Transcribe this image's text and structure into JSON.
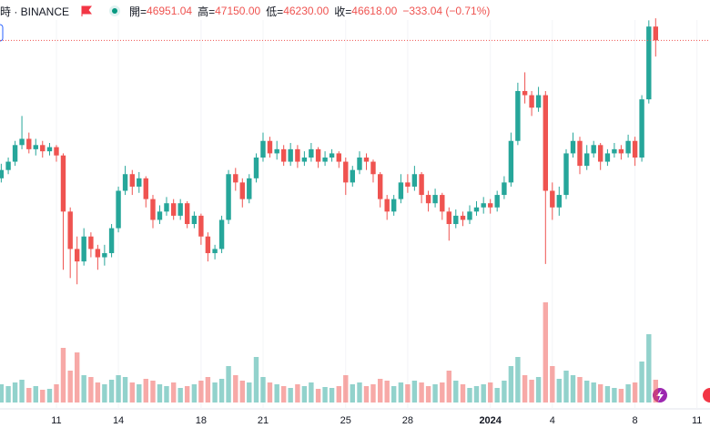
{
  "header": {
    "symbol": "時 · BINANCE",
    "open_label": "開=",
    "open": "46951.04",
    "high_label": "高=",
    "high": "47150.00",
    "low_label": "低=",
    "low": "46230.00",
    "close_label": "收=",
    "close": "46618.00",
    "change": "−333.04 (−0.71%)"
  },
  "chart_data": {
    "type": "candlestick",
    "x": [
      8.33,
      8.67,
      9,
      9.33,
      9.67,
      10,
      10.33,
      10.67,
      11,
      11.33,
      11.67,
      12,
      12.33,
      12.67,
      13,
      13.33,
      13.67,
      14,
      14.33,
      14.67,
      15,
      15.33,
      15.67,
      16,
      16.33,
      16.67,
      17,
      17.33,
      17.67,
      18,
      18.33,
      18.67,
      19,
      19.33,
      19.67,
      20,
      20.33,
      20.67,
      21,
      21.33,
      21.67,
      22,
      22.33,
      22.67,
      23,
      23.33,
      23.67,
      24,
      24.33,
      24.67,
      25,
      25.33,
      25.67,
      26,
      26.33,
      26.67,
      27,
      27.33,
      27.67,
      28,
      28.33,
      28.67,
      29,
      29.33,
      29.67,
      30,
      30.33,
      30.67,
      31,
      31.33,
      31.67,
      32,
      32.33,
      32.67,
      33,
      33.33,
      33.67,
      34,
      34.33,
      34.67,
      35,
      35.33,
      35.67,
      36,
      36.33,
      36.67,
      37,
      37.33,
      37.67,
      38,
      38.33,
      38.67,
      39,
      39.33,
      39.67,
      40
    ],
    "open": [
      43300,
      43500,
      43700,
      44100,
      44250,
      44000,
      44100,
      43950,
      44050,
      43850,
      42500,
      41600,
      41300,
      41900,
      41600,
      41400,
      41500,
      42100,
      43000,
      43400,
      43100,
      43300,
      42800,
      42300,
      42500,
      42700,
      42400,
      42700,
      42200,
      42400,
      41900,
      41500,
      41600,
      42300,
      43400,
      43200,
      42800,
      43300,
      43800,
      44200,
      43900,
      44000,
      43700,
      44000,
      43700,
      43800,
      44000,
      43700,
      43800,
      43900,
      43700,
      43200,
      43500,
      43800,
      43700,
      43400,
      42800,
      42500,
      42800,
      43200,
      43100,
      43400,
      42900,
      42700,
      42900,
      42500,
      42200,
      42400,
      42300,
      42500,
      42600,
      42700,
      42600,
      42900,
      43200,
      44200,
      45400,
      45300,
      45000,
      45300,
      43000,
      42600,
      42900,
      43900,
      44200,
      43600,
      43900,
      44100,
      43700,
      43900,
      44000,
      43900,
      44200,
      43800,
      45200,
      46951.04
    ],
    "high": [
      43650,
      43800,
      44200,
      44800,
      44400,
      44250,
      44200,
      44150,
      44100,
      43900,
      42600,
      41900,
      42100,
      42000,
      41700,
      41700,
      42200,
      43100,
      43600,
      43500,
      43450,
      43350,
      42900,
      42650,
      42850,
      42800,
      42800,
      42750,
      42500,
      42450,
      42000,
      41700,
      42400,
      43500,
      43550,
      43300,
      43400,
      43900,
      44400,
      44300,
      44200,
      44100,
      44150,
      44100,
      43950,
      44150,
      44050,
      43950,
      44000,
      43950,
      43800,
      43600,
      43950,
      43900,
      43750,
      43450,
      42900,
      42900,
      43400,
      43400,
      43600,
      43450,
      43000,
      43050,
      42950,
      42600,
      42550,
      42500,
      42650,
      42750,
      42850,
      42800,
      43000,
      43350,
      44400,
      45600,
      45850,
      45400,
      45500,
      45400,
      43200,
      43100,
      44000,
      44400,
      44300,
      44100,
      44200,
      44150,
      44000,
      44150,
      44100,
      44350,
      44300,
      45300,
      47100,
      47150
    ],
    "low": [
      43200,
      43400,
      43600,
      44000,
      43900,
      43850,
      43800,
      43850,
      43700,
      41100,
      40900,
      40750,
      41200,
      41400,
      41100,
      41200,
      41400,
      42000,
      42900,
      42900,
      42950,
      42600,
      42100,
      42200,
      42400,
      42300,
      42300,
      42100,
      42100,
      41700,
      41300,
      41350,
      41500,
      42200,
      43000,
      42600,
      42700,
      43200,
      43700,
      43800,
      43750,
      43600,
      43600,
      43550,
      43600,
      43700,
      43550,
      43600,
      43700,
      43550,
      42900,
      43100,
      43400,
      43500,
      43200,
      42600,
      42300,
      42400,
      42700,
      42950,
      43000,
      42700,
      42500,
      42600,
      42300,
      41800,
      42100,
      42150,
      42200,
      42400,
      42450,
      42450,
      42500,
      42800,
      43100,
      44100,
      45100,
      44800,
      44900,
      41240,
      42300,
      42400,
      42800,
      43800,
      43400,
      43500,
      43800,
      43500,
      43600,
      43800,
      43750,
      43800,
      43600,
      43700,
      45100,
      46230
    ],
    "close": [
      43500,
      43700,
      44100,
      44250,
      44000,
      44100,
      43950,
      44050,
      43850,
      42500,
      41600,
      41300,
      41900,
      41600,
      41400,
      41500,
      42100,
      43000,
      43400,
      43100,
      43300,
      42800,
      42300,
      42500,
      42700,
      42400,
      42700,
      42200,
      42400,
      41900,
      41500,
      41600,
      42300,
      43400,
      43200,
      42800,
      43300,
      43800,
      44200,
      43900,
      44000,
      43700,
      44000,
      43700,
      43800,
      44000,
      43700,
      43800,
      43900,
      43700,
      43200,
      43500,
      43800,
      43700,
      43400,
      42800,
      42500,
      42800,
      43200,
      43100,
      43400,
      42900,
      42700,
      42900,
      42500,
      42200,
      42400,
      42300,
      42500,
      42600,
      42700,
      42600,
      42900,
      43200,
      44200,
      45400,
      45300,
      45000,
      45300,
      43000,
      42600,
      42900,
      43900,
      44200,
      43600,
      43900,
      44100,
      43700,
      43900,
      44000,
      43900,
      44200,
      43800,
      45200,
      46951.04,
      46618
    ],
    "volume": [
      20,
      18,
      22,
      25,
      16,
      18,
      14,
      15,
      20,
      60,
      35,
      55,
      30,
      28,
      22,
      20,
      25,
      30,
      28,
      22,
      20,
      26,
      24,
      20,
      18,
      22,
      16,
      18,
      20,
      24,
      28,
      22,
      26,
      40,
      30,
      24,
      22,
      50,
      28,
      22,
      20,
      18,
      16,
      20,
      18,
      22,
      15,
      17,
      16,
      18,
      30,
      20,
      22,
      18,
      20,
      26,
      24,
      18,
      22,
      20,
      24,
      22,
      18,
      20,
      22,
      35,
      24,
      20,
      16,
      18,
      20,
      22,
      16,
      24,
      40,
      50,
      30,
      25,
      28,
      110,
      40,
      26,
      35,
      30,
      28,
      24,
      22,
      20,
      18,
      16,
      15,
      20,
      22,
      45,
      75,
      25
    ],
    "xlim": [
      8.27,
      42.63
    ],
    "xticks": [
      11,
      14,
      18,
      21,
      25,
      28,
      {
        "value": 32,
        "label": "2024"
      },
      {
        "value": 35,
        "label": "4"
      },
      {
        "value": 39,
        "label": "8"
      },
      {
        "value": 42,
        "label": "11"
      }
    ],
    "ylim": [
      40360,
      47590
    ],
    "volume_lim": [
      0,
      120
    ],
    "up_color": "#26a69a",
    "down_color": "#ef5350"
  }
}
